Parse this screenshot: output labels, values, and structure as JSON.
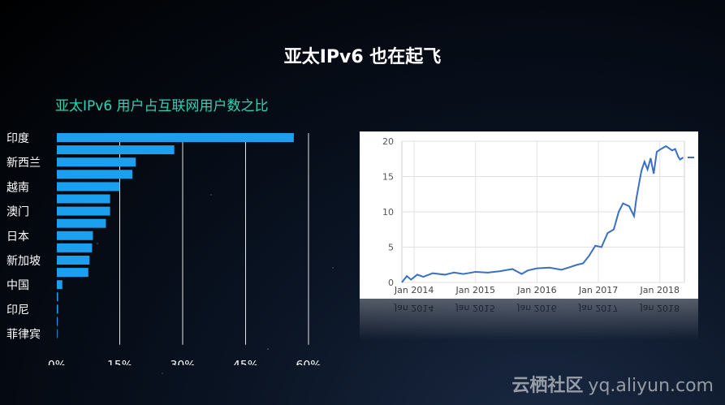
{
  "slide_title": "亚太IPv6 也在起飞",
  "watermark": {
    "brand": "云栖社区",
    "domain": "yq.aliyun.com"
  },
  "chart_data": [
    {
      "type": "bar",
      "orientation": "horizontal",
      "title": "亚太IPv6 用户占互联网用户数之比",
      "bar_color": "#1aa0ef",
      "categories": [
        "印度",
        "",
        "新西兰",
        "",
        "越南",
        "",
        "澳门",
        "",
        "日本",
        "",
        "新加坡",
        "",
        "中国",
        "",
        "印尼",
        "",
        "菲律宾"
      ],
      "values": [
        56.5,
        28.0,
        18.8,
        18.0,
        15.0,
        12.7,
        12.7,
        11.7,
        8.6,
        8.4,
        7.8,
        7.5,
        1.3,
        0.3,
        0.3,
        0.2,
        0.1
      ],
      "xlim": [
        0,
        60
      ],
      "x_ticks": [
        "0%",
        "15%",
        "30%",
        "45%",
        "60%"
      ],
      "x_tick_values": [
        0,
        15,
        30,
        45,
        60
      ],
      "grid": "vertical"
    },
    {
      "type": "line",
      "line_color": "#3a6fc4",
      "ylim": [
        0,
        20
      ],
      "y_ticks": [
        "0",
        "5",
        "10",
        "15",
        "20"
      ],
      "y_tick_values": [
        0,
        5,
        10,
        15,
        20
      ],
      "x_ticks": [
        "Jan 2014",
        "Jan 2015",
        "Jan 2016",
        "Jan 2017",
        "Jan 2018"
      ],
      "x_tick_values": [
        2014,
        2015,
        2016,
        2017,
        2018
      ],
      "xlim": [
        2013.8,
        2018.4
      ],
      "grid": "both",
      "x": [
        2013.8,
        2013.88,
        2013.95,
        2014.05,
        2014.15,
        2014.3,
        2014.5,
        2014.65,
        2014.8,
        2015.0,
        2015.2,
        2015.4,
        2015.6,
        2015.75,
        2015.85,
        2016.0,
        2016.2,
        2016.4,
        2016.55,
        2016.65,
        2016.75,
        2016.85,
        2016.95,
        2017.05,
        2017.15,
        2017.25,
        2017.33,
        2017.4,
        2017.5,
        2017.58,
        2017.62,
        2017.7,
        2017.75,
        2017.8,
        2017.85,
        2017.9,
        2017.95,
        2018.0,
        2018.1,
        2018.2,
        2018.25,
        2018.3,
        2018.33,
        2018.38
      ],
      "y": [
        0.0,
        0.9,
        0.4,
        1.1,
        0.8,
        1.3,
        1.1,
        1.4,
        1.2,
        1.5,
        1.4,
        1.6,
        1.9,
        1.2,
        1.7,
        2.0,
        2.1,
        1.8,
        2.2,
        2.5,
        2.7,
        3.8,
        5.2,
        5.0,
        7.0,
        7.5,
        10.0,
        11.2,
        10.8,
        9.4,
        12.0,
        15.8,
        17.1,
        16.0,
        17.6,
        15.4,
        18.5,
        18.8,
        19.3,
        18.7,
        18.9,
        17.8,
        17.4,
        17.7
      ]
    }
  ]
}
